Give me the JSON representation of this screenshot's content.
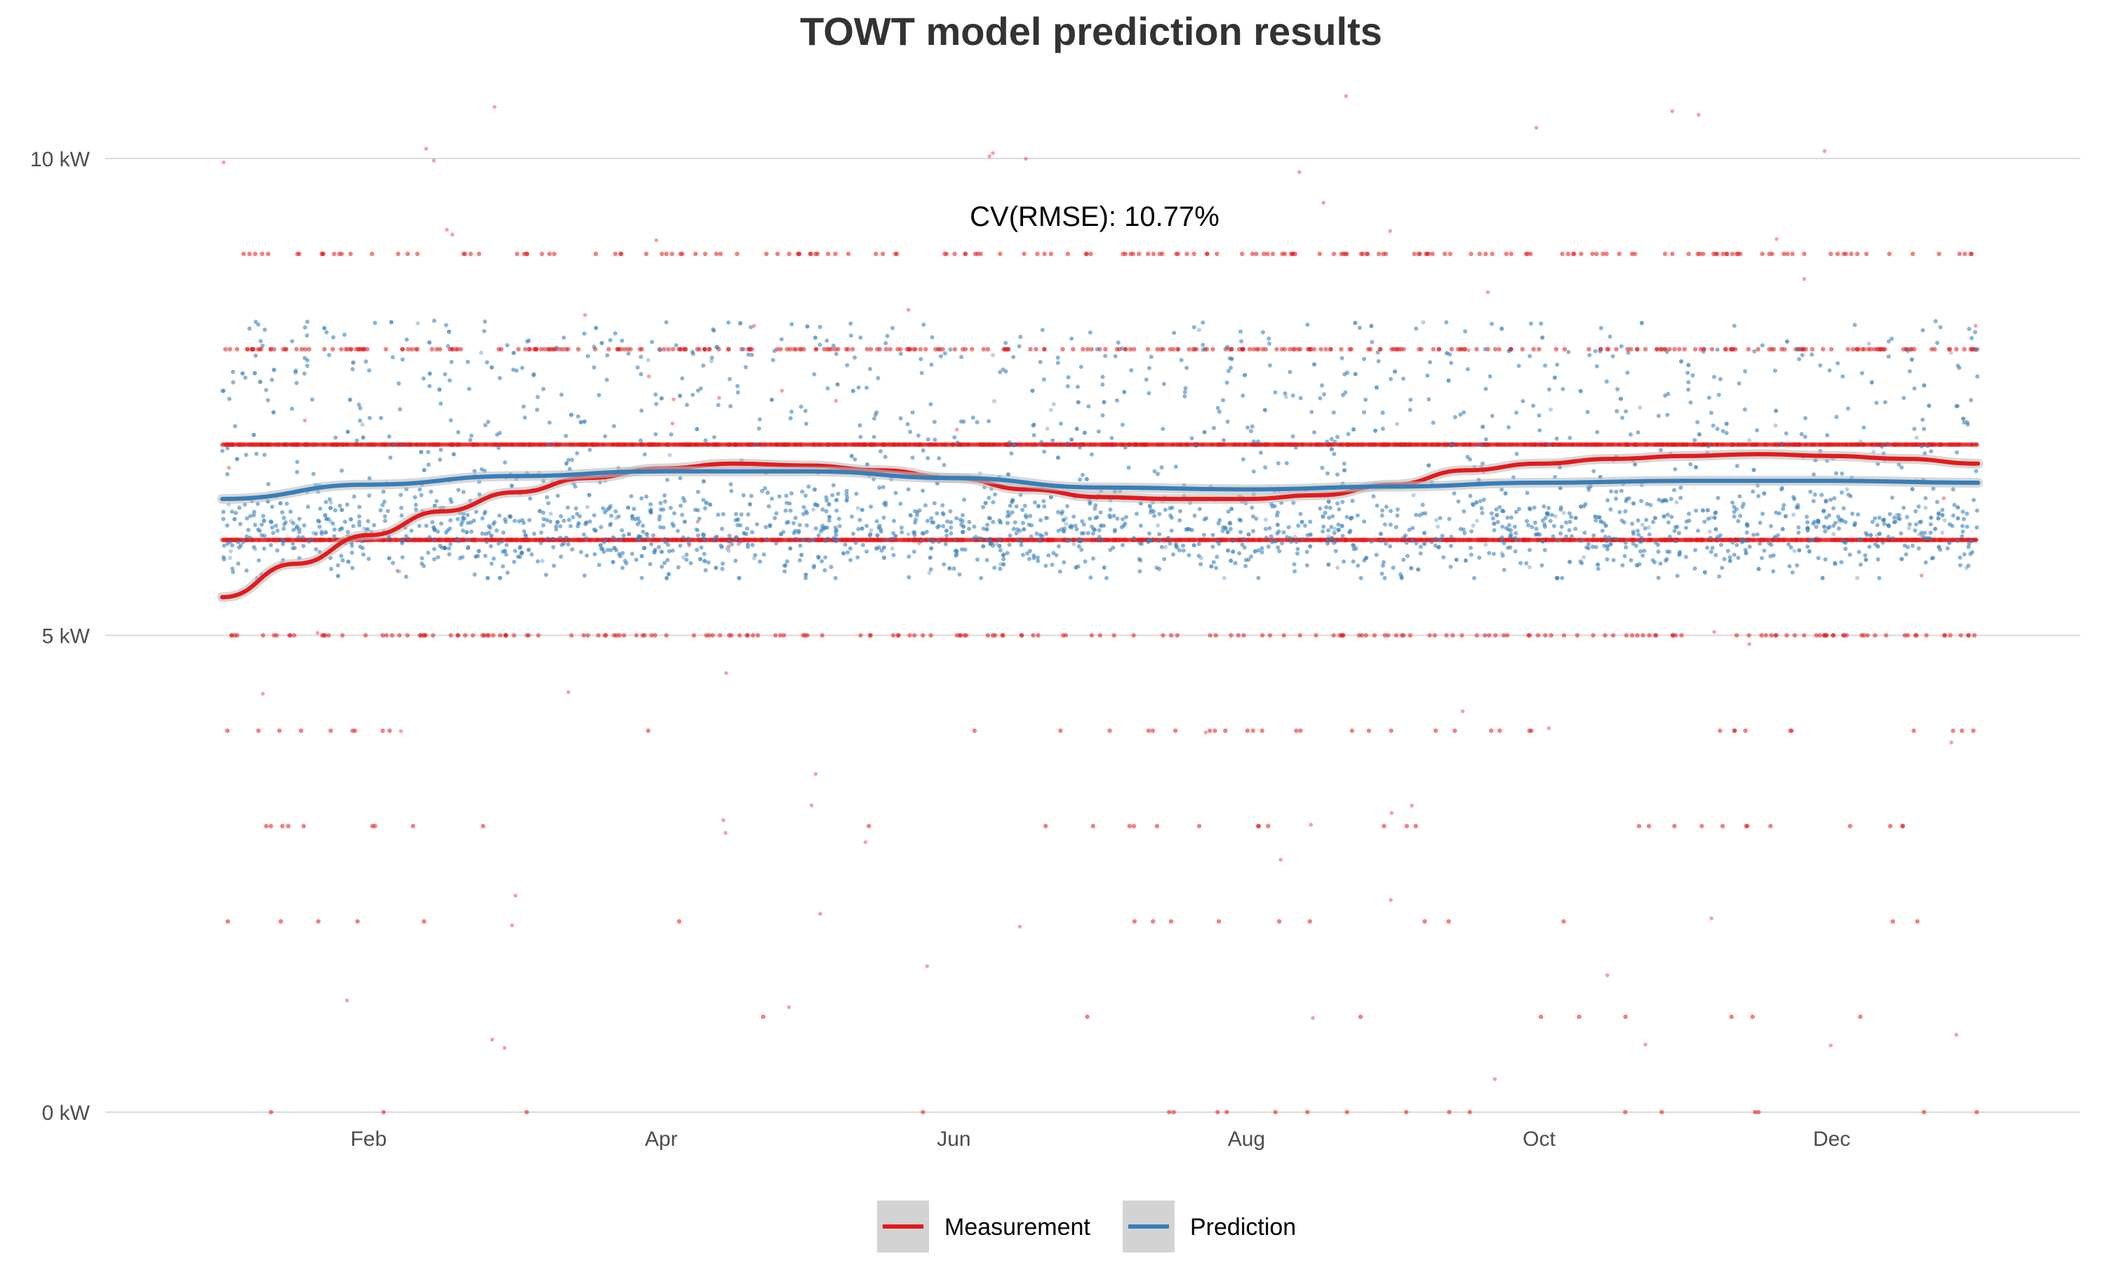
{
  "chart_data": {
    "type": "scatter",
    "title": "TOWT model prediction results",
    "xlabel": "",
    "ylabel": "",
    "x_tick_labels": [
      "Feb",
      "Apr",
      "Jun",
      "Aug",
      "Oct",
      "Dec"
    ],
    "x_tick_months": [
      2,
      4,
      6,
      8,
      10,
      12
    ],
    "xlim_months": [
      0.2,
      13.7
    ],
    "y_ticks": [
      0,
      5,
      10
    ],
    "y_tick_labels": [
      "0 kW",
      "5 kW",
      "10 kW"
    ],
    "ylim": [
      0,
      11
    ],
    "y_unit": "kW",
    "grid": {
      "horizontal": true,
      "vertical": false
    },
    "legend_position": "bottom",
    "annotation": "CV(RMSE): 10.77%",
    "series": [
      {
        "name": "Measurement",
        "color": "#e41a1c",
        "point_levels_kw": [
          9,
          8,
          7,
          6,
          5,
          4,
          3,
          2,
          1,
          0
        ],
        "smooth_curve": {
          "x_month": [
            1.0,
            1.5,
            2.0,
            2.5,
            3.0,
            3.5,
            4.0,
            4.5,
            5.0,
            5.5,
            6.0,
            6.5,
            7.0,
            7.5,
            8.0,
            8.5,
            9.0,
            9.5,
            10.0,
            10.5,
            11.0,
            11.5,
            12.0,
            12.5,
            13.0
          ],
          "y_kw": [
            5.4,
            5.75,
            6.05,
            6.3,
            6.5,
            6.65,
            6.75,
            6.8,
            6.78,
            6.73,
            6.65,
            6.53,
            6.45,
            6.43,
            6.43,
            6.47,
            6.58,
            6.73,
            6.8,
            6.85,
            6.88,
            6.9,
            6.88,
            6.85,
            6.8
          ]
        }
      },
      {
        "name": "Prediction",
        "color": "#377eb8",
        "point_range_kw": [
          5.6,
          8.3
        ],
        "smooth_curve": {
          "x_month": [
            1.0,
            2.0,
            3.0,
            4.0,
            5.0,
            6.0,
            7.0,
            8.0,
            9.0,
            10.0,
            11.0,
            12.0,
            13.0
          ],
          "y_kw": [
            6.43,
            6.58,
            6.67,
            6.72,
            6.72,
            6.65,
            6.55,
            6.53,
            6.56,
            6.6,
            6.62,
            6.62,
            6.6
          ]
        }
      }
    ]
  }
}
